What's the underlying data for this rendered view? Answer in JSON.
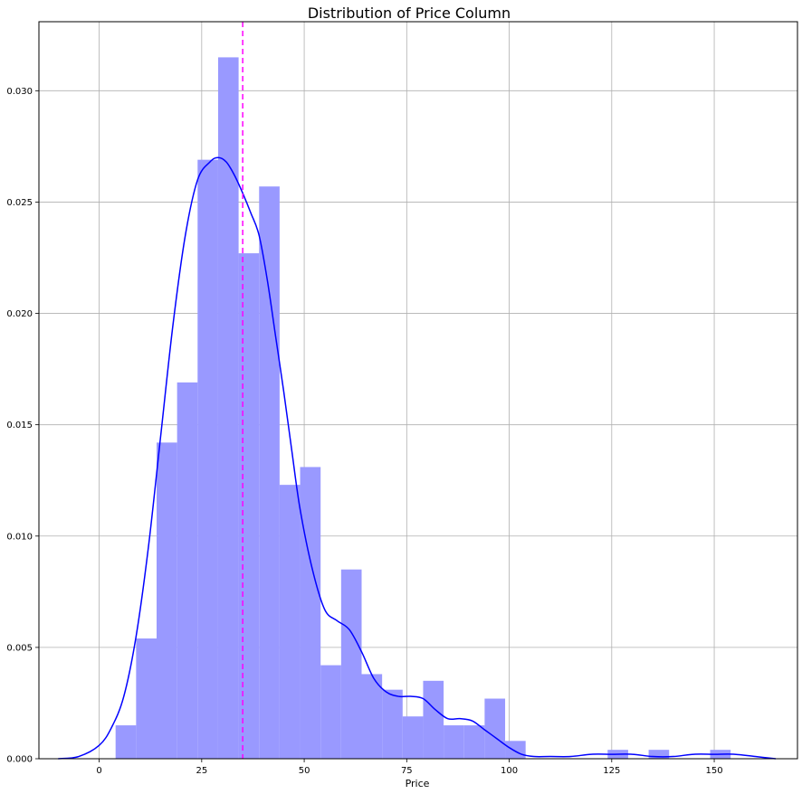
{
  "chart_data": {
    "type": "histogram",
    "title": "Distribution of Price Column",
    "xlabel": "Price",
    "ylabel": "",
    "xlim": [
      -14.7,
      170.3
    ],
    "ylim": [
      0,
      0.0331
    ],
    "xticks": [
      0,
      25,
      50,
      75,
      100,
      125,
      150
    ],
    "yticks": [
      0.0,
      0.005,
      0.01,
      0.015,
      0.02,
      0.025,
      0.03
    ],
    "ytick_labels": [
      "0.000",
      "0.005",
      "0.010",
      "0.015",
      "0.020",
      "0.025",
      "0.030"
    ],
    "grid": true,
    "bin_edges": [
      4,
      9,
      14,
      19,
      24,
      29,
      34,
      39,
      44,
      49,
      54,
      59,
      64,
      69,
      74,
      79,
      84,
      89,
      94,
      99,
      104,
      109,
      114,
      119,
      124,
      129,
      134,
      139,
      144,
      149,
      154
    ],
    "densities": [
      0.0015,
      0.0054,
      0.0142,
      0.0169,
      0.0269,
      0.0315,
      0.0227,
      0.0257,
      0.0123,
      0.0131,
      0.0042,
      0.0085,
      0.0038,
      0.0031,
      0.0019,
      0.0035,
      0.0015,
      0.0015,
      0.0027,
      0.0008,
      0,
      0,
      0,
      0,
      0.0004,
      0,
      0.0004,
      0,
      0,
      0.0004
    ],
    "kde": {
      "x": [
        -10,
        -5,
        0,
        3,
        6,
        9,
        12,
        15,
        18,
        21,
        24,
        27,
        29,
        31,
        33,
        35,
        37,
        39,
        41,
        43,
        45,
        47,
        49,
        52,
        55,
        58,
        61,
        64,
        67,
        70,
        73,
        76,
        79,
        82,
        85,
        88,
        91,
        94,
        97,
        100,
        103,
        106,
        110,
        115,
        120,
        125,
        130,
        135,
        140,
        145,
        150,
        155,
        160,
        165
      ],
      "y": [
        0.0,
        0.0001,
        0.0006,
        0.0014,
        0.0028,
        0.0055,
        0.0095,
        0.0145,
        0.0195,
        0.0235,
        0.026,
        0.0268,
        0.027,
        0.0268,
        0.0262,
        0.0254,
        0.0245,
        0.0235,
        0.0215,
        0.019,
        0.0165,
        0.0138,
        0.0112,
        0.0085,
        0.0067,
        0.0062,
        0.0058,
        0.0048,
        0.0036,
        0.003,
        0.0028,
        0.0028,
        0.0027,
        0.0022,
        0.0018,
        0.0018,
        0.0017,
        0.0013,
        0.0009,
        0.0005,
        0.0002,
        0.0001,
        0.0001,
        0.0001,
        0.0002,
        0.0002,
        0.0002,
        0.0001,
        0.0001,
        0.0002,
        0.0002,
        0.0002,
        0.0001,
        0.0
      ],
      "color": "#0000ff"
    },
    "vline": {
      "x": 35,
      "style": "dashed",
      "color": "#ff00ff"
    },
    "bar_color": "#9999ff"
  }
}
